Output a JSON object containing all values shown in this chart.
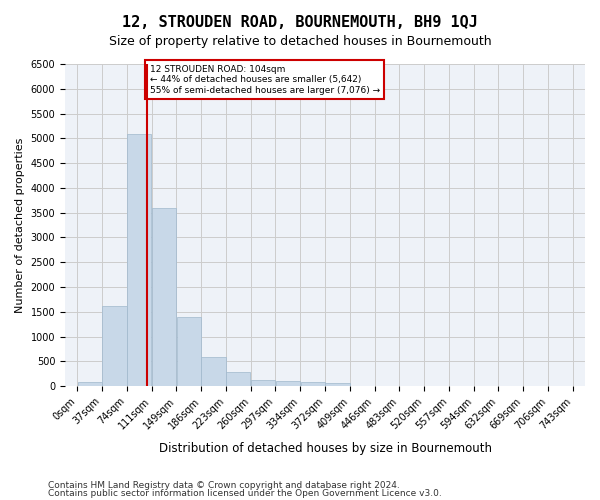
{
  "title": "12, STROUDEN ROAD, BOURNEMOUTH, BH9 1QJ",
  "subtitle": "Size of property relative to detached houses in Bournemouth",
  "xlabel": "Distribution of detached houses by size in Bournemouth",
  "ylabel": "Number of detached properties",
  "footer1": "Contains HM Land Registry data © Crown copyright and database right 2024.",
  "footer2": "Contains public sector information licensed under the Open Government Licence v3.0.",
  "bin_labels": [
    "0sqm",
    "37sqm",
    "74sqm",
    "111sqm",
    "149sqm",
    "186sqm",
    "223sqm",
    "260sqm",
    "297sqm",
    "334sqm",
    "372sqm",
    "409sqm",
    "446sqm",
    "483sqm",
    "520sqm",
    "557sqm",
    "594sqm",
    "632sqm",
    "669sqm",
    "706sqm",
    "743sqm"
  ],
  "bar_values": [
    75,
    1625,
    5080,
    3600,
    1400,
    590,
    290,
    130,
    100,
    75,
    55,
    10,
    5,
    2,
    1,
    1,
    0,
    0,
    0,
    0
  ],
  "bar_color": "#c8d8e8",
  "bar_edge_color": "#a0b8cc",
  "grid_color": "#cccccc",
  "bg_color": "#eef2f8",
  "red_line_x": 104,
  "annotation_text": "12 STROUDEN ROAD: 104sqm\n← 44% of detached houses are smaller (5,642)\n55% of semi-detached houses are larger (7,076) →",
  "annotation_box_color": "#ffffff",
  "annotation_box_edge": "#cc0000",
  "annotation_text_color": "#000000",
  "ylim": [
    0,
    6500
  ],
  "yticks": [
    0,
    500,
    1000,
    1500,
    2000,
    2500,
    3000,
    3500,
    4000,
    4500,
    5000,
    5500,
    6000,
    6500
  ],
  "title_fontsize": 11,
  "subtitle_fontsize": 9,
  "axis_label_fontsize": 8,
  "tick_fontsize": 7,
  "footer_fontsize": 6.5,
  "bin_width": 37
}
